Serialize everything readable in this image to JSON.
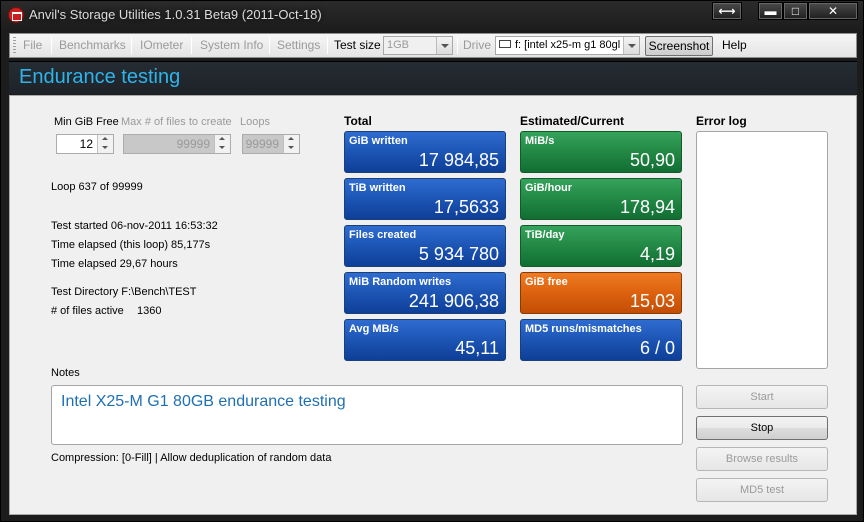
{
  "window": {
    "title": "Anvil's Storage Utilities 1.0.31 Beta9 (2011-Oct-18)",
    "buttons": {
      "move": "⟷",
      "minimize": "▬",
      "maximize": "□",
      "close": "✕"
    }
  },
  "menubar": {
    "items": [
      "File",
      "Benchmarks",
      "IOmeter",
      "System Info",
      "Settings"
    ],
    "test_size_label": "Test size",
    "test_size_value": "1GB",
    "drive_label": "Drive",
    "drive_value": "f: [intel x25-m g1 80gl",
    "screenshot_label": "Screenshot",
    "help_label": "Help"
  },
  "header": {
    "title": "Endurance testing"
  },
  "params": {
    "min_gib_free_label": "Min GiB Free",
    "min_gib_free_value": "12",
    "max_files_label": "Max # of files to create",
    "max_files_value": "99999",
    "loops_label": "Loops",
    "loops_value": "99999"
  },
  "status": {
    "loop": "Loop 637 of 99999",
    "test_started": "Test started 06-nov-2011 16:53:32",
    "elapsed_loop": "Time elapsed (this loop) 85,177s",
    "elapsed_total": "Time elapsed 29,67 hours",
    "test_directory": "Test Directory F:\\Bench\\TEST",
    "files_active_label": "# of files active",
    "files_active_value": "1360"
  },
  "total": {
    "heading": "Total",
    "tiles": [
      {
        "label": "GiB written",
        "value": "17 984,85"
      },
      {
        "label": "TiB written",
        "value": "17,5633"
      },
      {
        "label": "Files created",
        "value": "5 934 780"
      },
      {
        "label": "MiB Random writes",
        "value": "241 906,38"
      },
      {
        "label": "Avg MB/s",
        "value": "45,11"
      }
    ]
  },
  "estimated": {
    "heading": "Estimated/Current",
    "tiles": [
      {
        "label": "MiB/s",
        "value": "50,90"
      },
      {
        "label": "GiB/hour",
        "value": "178,94"
      },
      {
        "label": "TiB/day",
        "value": "4,19"
      },
      {
        "label": "GiB free",
        "value": "15,03"
      },
      {
        "label": "MD5 runs/mismatches",
        "value": "6 / 0"
      }
    ]
  },
  "error_log": {
    "heading": "Error log"
  },
  "notes": {
    "label": "Notes",
    "text": "Intel X25-M G1 80GB endurance testing",
    "compression": "Compression: [0-Fill]  |  Allow deduplication of random data"
  },
  "actions": {
    "start": "Start",
    "stop": "Stop",
    "browse": "Browse results",
    "md5": "MD5 test"
  },
  "colors": {
    "accent": "#2fb4ea",
    "tile_blue": "#1e57b7",
    "tile_green": "#248b47",
    "tile_orange": "#df6411",
    "notes_text": "#1f6fb3"
  }
}
